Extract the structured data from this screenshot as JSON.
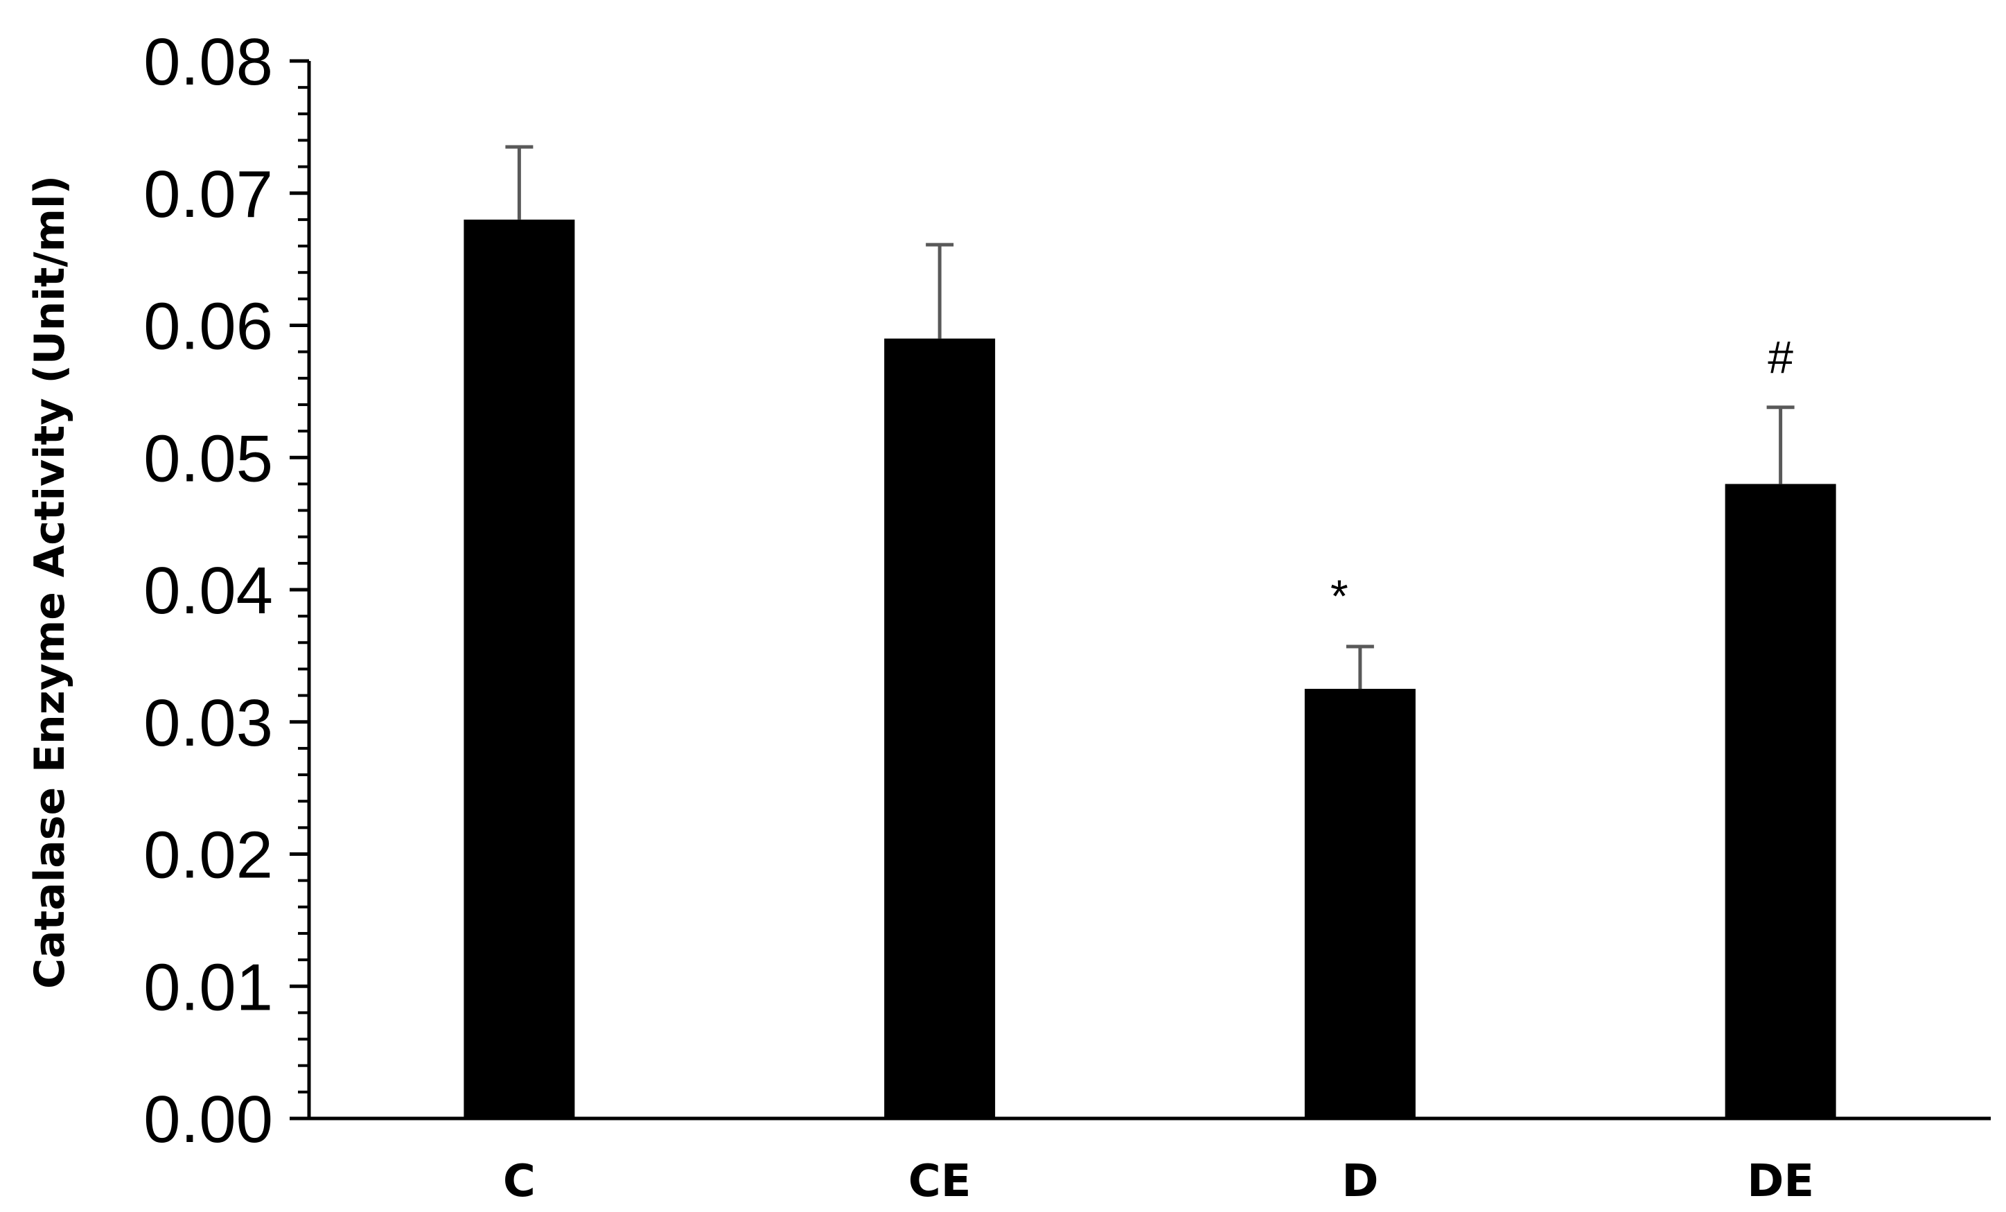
{
  "chart_data": {
    "type": "bar",
    "categories": [
      "C",
      "CE",
      "D",
      "DE"
    ],
    "values": [
      0.068,
      0.059,
      0.0325,
      0.048
    ],
    "error_upper": [
      0.0735,
      0.0661,
      0.0357,
      0.0538
    ],
    "annotations": [
      "",
      "",
      "*",
      "#"
    ],
    "ylabel": "Catalase Enzyme Activity (Unit/ml)",
    "xlabel": "",
    "title": "",
    "ylim": [
      0,
      0.08
    ],
    "yticks": [
      "0.00",
      "0.01",
      "0.02",
      "0.03",
      "0.04",
      "0.05",
      "0.06",
      "0.07",
      "0.08"
    ],
    "ytick_values": [
      0,
      0.01,
      0.02,
      0.03,
      0.04,
      0.05,
      0.06,
      0.07,
      0.08
    ],
    "minor_ticks_per_major": 5,
    "grid": false,
    "legend": "none",
    "colors": {
      "bar": "#000000",
      "error_bar": "#595959",
      "axis": "#000000"
    }
  }
}
